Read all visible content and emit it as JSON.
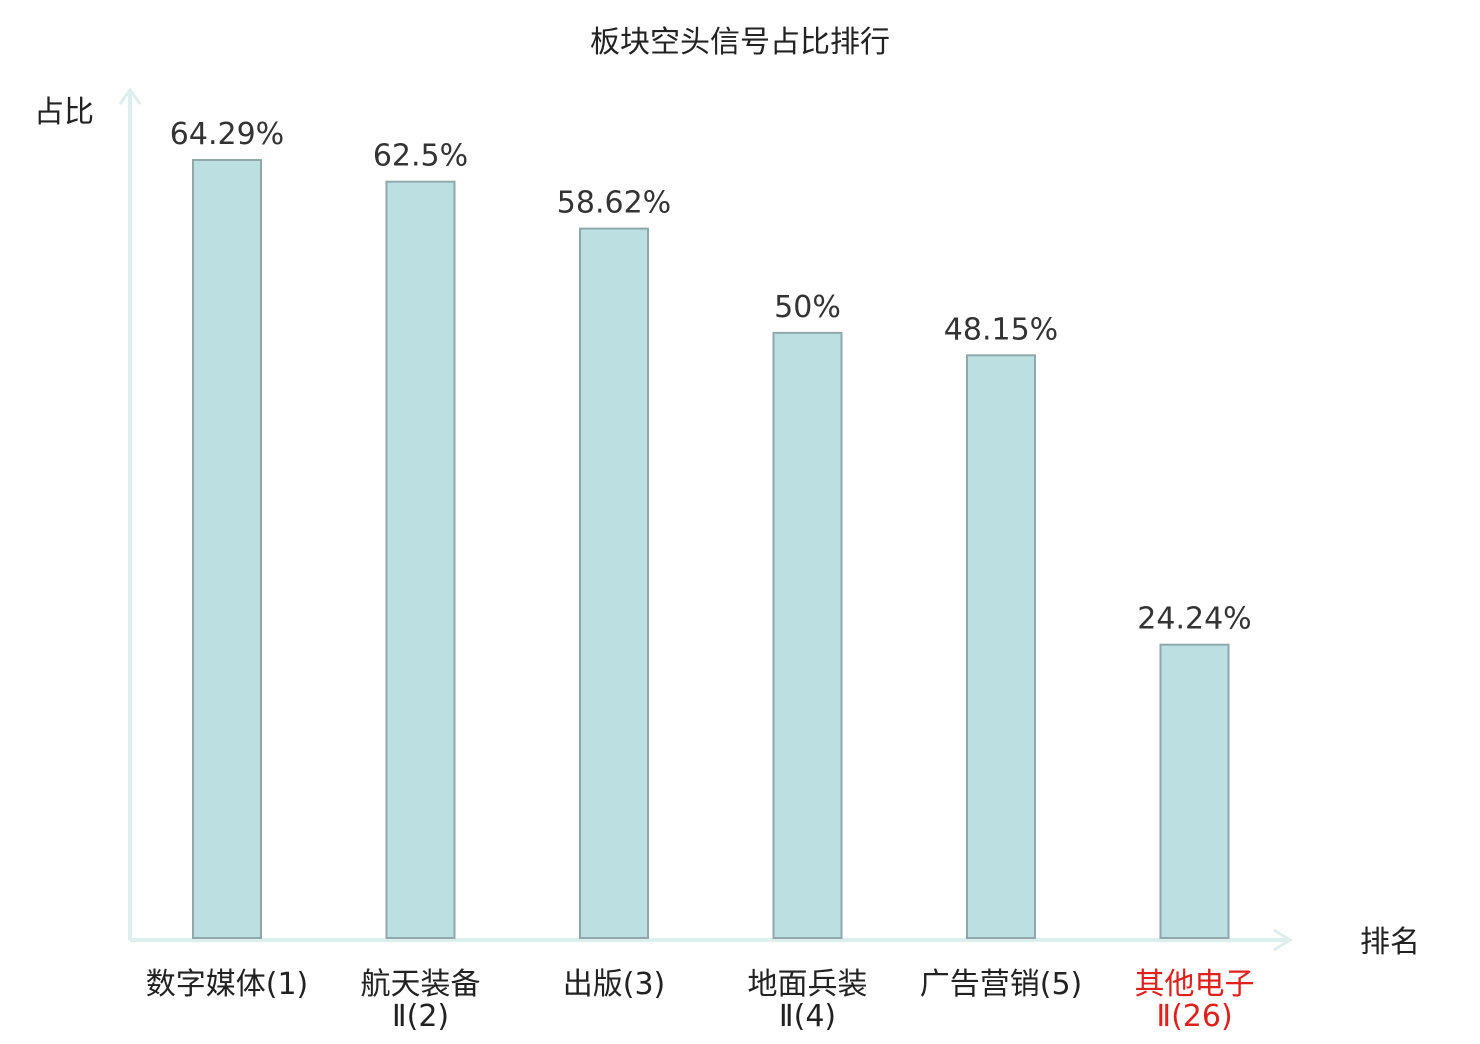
{
  "chart_data": {
    "type": "bar",
    "title": "板块空头信号占比排行",
    "ylabel": "占比",
    "xlabel": "排名",
    "categories": [
      [
        "数字媒体(1)"
      ],
      [
        "航天装备",
        "Ⅱ(2)"
      ],
      [
        "出版(3)"
      ],
      [
        "地面兵装",
        "Ⅱ(4)"
      ],
      [
        "广告营销(5)"
      ],
      [
        "其他电子",
        "Ⅱ(26)"
      ]
    ],
    "values": [
      64.29,
      62.5,
      58.62,
      50,
      48.15,
      24.24
    ],
    "value_labels": [
      "64.29%",
      "62.5%",
      "58.62%",
      "50%",
      "48.15%",
      "24.24%"
    ],
    "highlight_index": 5,
    "ylim": [
      0,
      70
    ],
    "grid": false,
    "legend": "none",
    "colors": {
      "bar_fill": "#bce0e2",
      "bar_stroke": "#8fa9ab",
      "axis": "#dcefed",
      "text": "#222222",
      "value_text": "#333333",
      "highlight": "#e0201b"
    }
  }
}
